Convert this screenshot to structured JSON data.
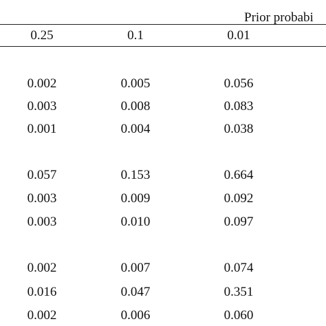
{
  "table": {
    "header_label": "Prior probabi",
    "columns": [
      "0.25",
      "0.1",
      "0.01"
    ],
    "groups": [
      {
        "rows": [
          [
            "0.002",
            "0.005",
            "0.056"
          ],
          [
            "0.003",
            "0.008",
            "0.083"
          ],
          [
            "0.001",
            "0.004",
            "0.038"
          ]
        ]
      },
      {
        "rows": [
          [
            "0.057",
            "0.153",
            "0.664"
          ],
          [
            "0.003",
            "0.009",
            "0.092"
          ],
          [
            "0.003",
            "0.010",
            "0.097"
          ]
        ]
      },
      {
        "rows": [
          [
            "0.002",
            "0.007",
            "0.074"
          ],
          [
            "0.016",
            "0.047",
            "0.351"
          ],
          [
            "0.002",
            "0.006",
            "0.060"
          ]
        ]
      }
    ]
  }
}
